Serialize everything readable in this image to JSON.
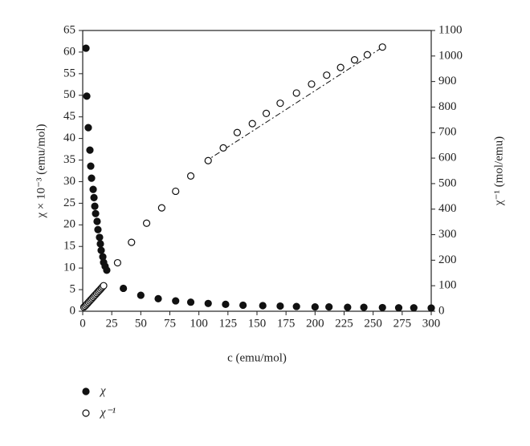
{
  "chart_data": {
    "type": "scatter",
    "x_label": "c (emu/mol)",
    "y_label": "χ × 10⁻³ (emu/mol)",
    "y2_label": "χ⁻¹ (mol/emu)",
    "xlim": [
      0,
      300
    ],
    "xticks": [
      0,
      25,
      50,
      75,
      100,
      125,
      150,
      175,
      200,
      225,
      250,
      275,
      300
    ],
    "ylim": [
      0,
      65
    ],
    "yticks": [
      0,
      5,
      10,
      15,
      20,
      25,
      30,
      35,
      40,
      45,
      50,
      55,
      60,
      65
    ],
    "y2lim": [
      0,
      1100
    ],
    "y2ticks": [
      0,
      100,
      200,
      300,
      400,
      500,
      600,
      700,
      800,
      900,
      1000,
      1100
    ],
    "series": [
      {
        "name": "χ",
        "color": "#111111",
        "filled": true,
        "x": [
          2.8,
          3.5,
          4.8,
          6.2,
          6.9,
          7.6,
          9.0,
          9.7,
          10.4,
          11.1,
          12.4,
          13.1,
          14.5,
          15.2,
          15.9,
          17.3,
          18.0,
          19.3,
          20.7,
          35,
          50,
          65,
          80,
          93,
          108,
          123,
          138,
          155,
          170,
          184,
          200,
          212,
          228,
          242,
          258,
          272,
          285,
          300
        ],
        "values": [
          60.9,
          49.8,
          42.5,
          37.3,
          33.6,
          30.8,
          28.2,
          26.3,
          24.3,
          22.6,
          20.8,
          18.9,
          17.1,
          15.6,
          14.1,
          12.6,
          11.3,
          10.4,
          9.5,
          5.3,
          3.7,
          2.9,
          2.4,
          2.1,
          1.8,
          1.6,
          1.4,
          1.3,
          1.2,
          1.1,
          1.0,
          1.0,
          0.9,
          0.9,
          0.85,
          0.8,
          0.8,
          0.75
        ]
      },
      {
        "name": "χ⁻¹",
        "color": "#111111",
        "filled": false,
        "axis": "y2",
        "x": [
          1,
          2,
          3,
          4,
          5,
          6,
          7,
          8,
          9,
          10,
          11,
          12,
          13,
          14,
          15,
          16,
          17,
          18,
          30,
          42,
          55,
          68,
          80,
          93,
          108,
          121,
          133,
          146,
          158,
          170,
          184,
          197,
          210,
          222,
          234,
          245,
          258
        ],
        "values": [
          16,
          20,
          25,
          30,
          35,
          40,
          45,
          50,
          55,
          60,
          65,
          70,
          75,
          80,
          85,
          90,
          95,
          100,
          190,
          270,
          345,
          405,
          470,
          530,
          590,
          640,
          700,
          735,
          775,
          815,
          855,
          890,
          925,
          955,
          985,
          1005,
          1035
        ]
      }
    ],
    "fit": {
      "x": [
        105,
        260
      ],
      "values": [
        585,
        1040
      ],
      "axis": "y2",
      "color": "#111111"
    }
  }
}
